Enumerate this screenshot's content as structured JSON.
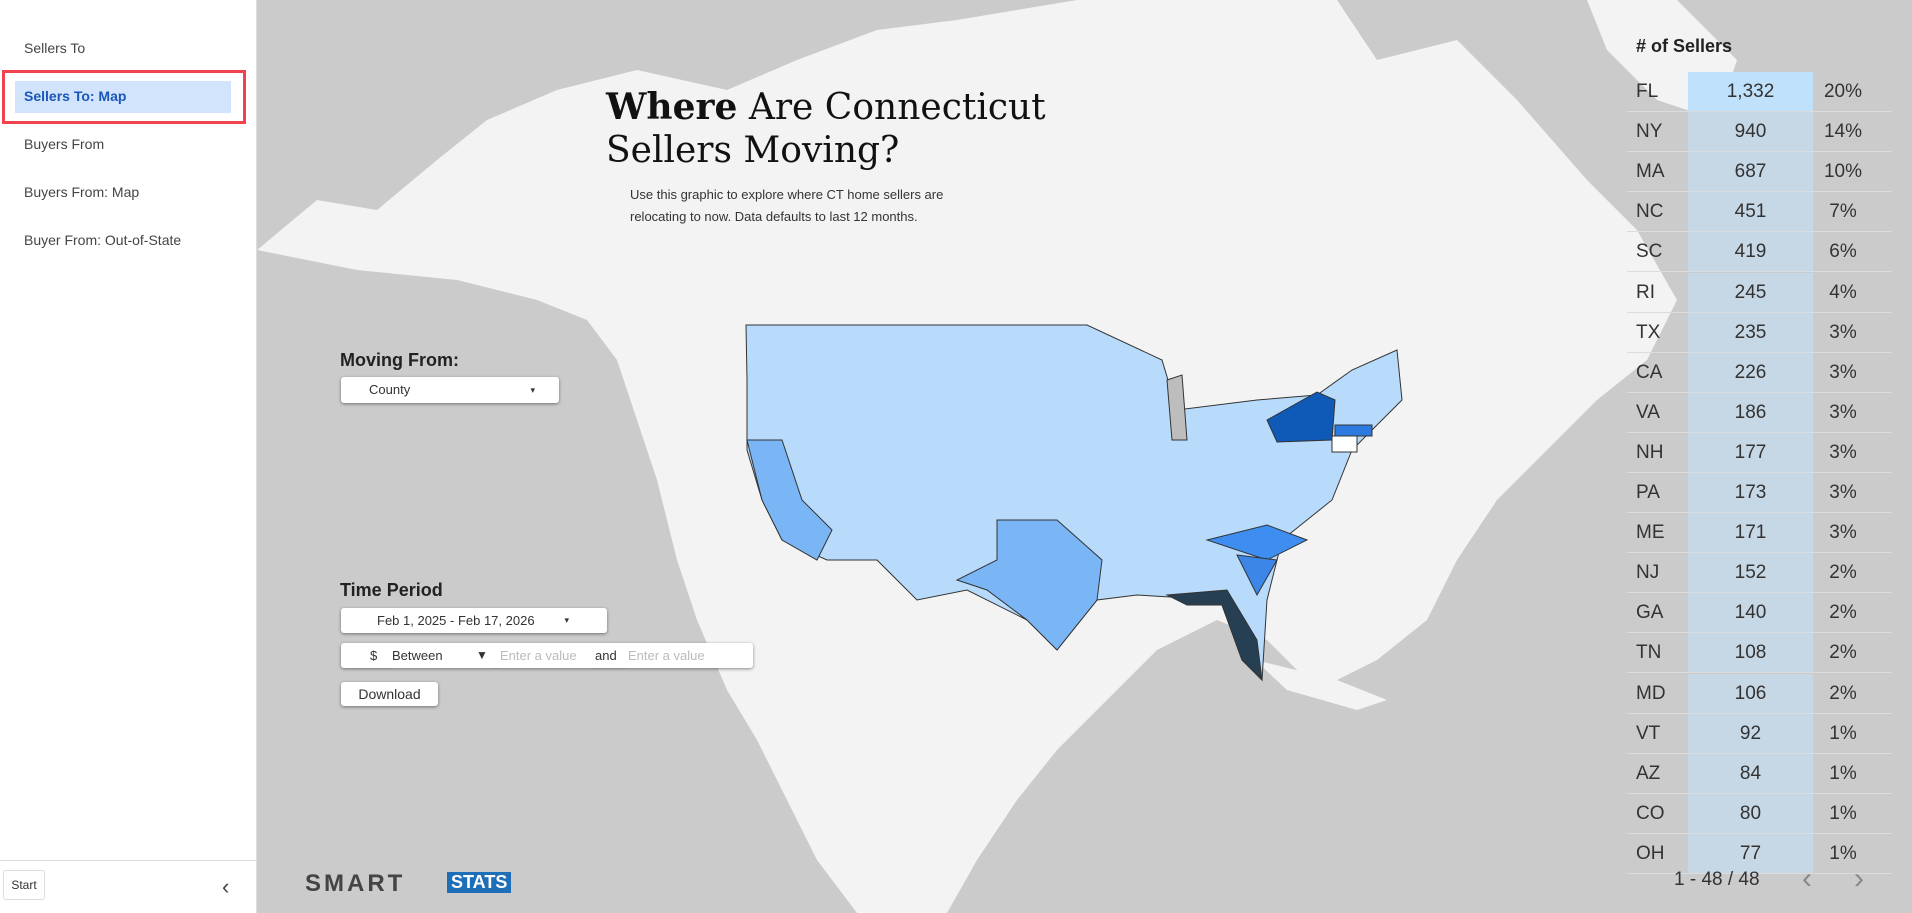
{
  "sidebar": {
    "nav": [
      "Sellers To",
      "Sellers To: Map",
      "Buyers From",
      "Buyers From: Map",
      "Buyer From: Out-of-State"
    ],
    "selected": 1,
    "start": "Start"
  },
  "header": {
    "title_bold": "Where",
    "title_rest_line1": "Are Connecticut",
    "title_line2": "Sellers Moving?",
    "description_line1": "Use this graphic to explore where CT home sellers are",
    "description_line2": "relocating to now.  Data defaults to last 12 months."
  },
  "controls": {
    "moving_from_label": "Moving From:",
    "moving_from_value": "County",
    "time_period_label": "Time Period",
    "date_range": "Feb 1, 2025 - Feb 17, 2026",
    "price_symbol": "$",
    "price_operator": "Between",
    "min_placeholder": "Enter a value",
    "and": "and",
    "max_placeholder": "Enter a value",
    "download": "Download"
  },
  "table": {
    "header": "# of Sellers",
    "rows": [
      [
        "FL",
        "1,332",
        "20%"
      ],
      [
        "NY",
        "940",
        "14%"
      ],
      [
        "MA",
        "687",
        "10%"
      ],
      [
        "NC",
        "451",
        "7%"
      ],
      [
        "SC",
        "419",
        "6%"
      ],
      [
        "RI",
        "245",
        "4%"
      ],
      [
        "TX",
        "235",
        "3%"
      ],
      [
        "CA",
        "226",
        "3%"
      ],
      [
        "VA",
        "186",
        "3%"
      ],
      [
        "NH",
        "177",
        "3%"
      ],
      [
        "PA",
        "173",
        "3%"
      ],
      [
        "ME",
        "171",
        "3%"
      ],
      [
        "NJ",
        "152",
        "2%"
      ],
      [
        "GA",
        "140",
        "2%"
      ],
      [
        "TN",
        "108",
        "2%"
      ],
      [
        "MD",
        "106",
        "2%"
      ],
      [
        "VT",
        "92",
        "1%"
      ],
      [
        "AZ",
        "84",
        "1%"
      ],
      [
        "CO",
        "80",
        "1%"
      ],
      [
        "OH",
        "77",
        "1%"
      ]
    ],
    "pagination": "1 - 48 / 48"
  },
  "logo": {
    "left": "SMART",
    "right": "STATS"
  }
}
